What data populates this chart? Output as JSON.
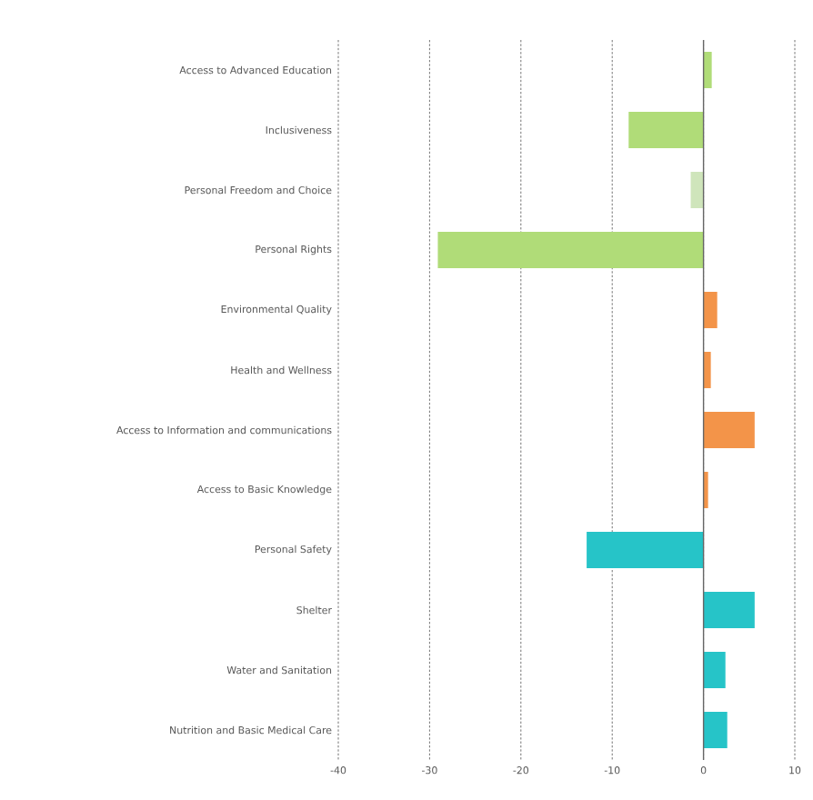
{
  "chart_data": {
    "type": "bar",
    "orientation": "horizontal",
    "categories": [
      "Access to Advanced Education",
      "Inclusiveness",
      "Personal Freedom and Choice",
      "Personal Rights",
      "Environmental Quality",
      "Health and Wellness",
      "Access to Information and communications",
      "Access to Basic Knowledge",
      "Personal Safety",
      "Shelter",
      "Water and Sanitation",
      "Nutrition and Basic Medical Care"
    ],
    "values": [
      0.9,
      -8.2,
      -1.4,
      -29.1,
      1.5,
      0.8,
      5.6,
      0.5,
      -12.8,
      5.6,
      2.4,
      2.6
    ],
    "colors": [
      "#b0dc78",
      "#b0dc78",
      "#cfe5bb",
      "#b0dc78",
      "#f39449",
      "#f39449",
      "#f39449",
      "#f39449",
      "#26c4c8",
      "#26c4c8",
      "#26c4c8",
      "#26c4c8"
    ],
    "xlim": [
      -40,
      10
    ],
    "xticks": [
      -40,
      -30,
      -20,
      -10,
      0,
      10
    ],
    "grid": "x"
  }
}
